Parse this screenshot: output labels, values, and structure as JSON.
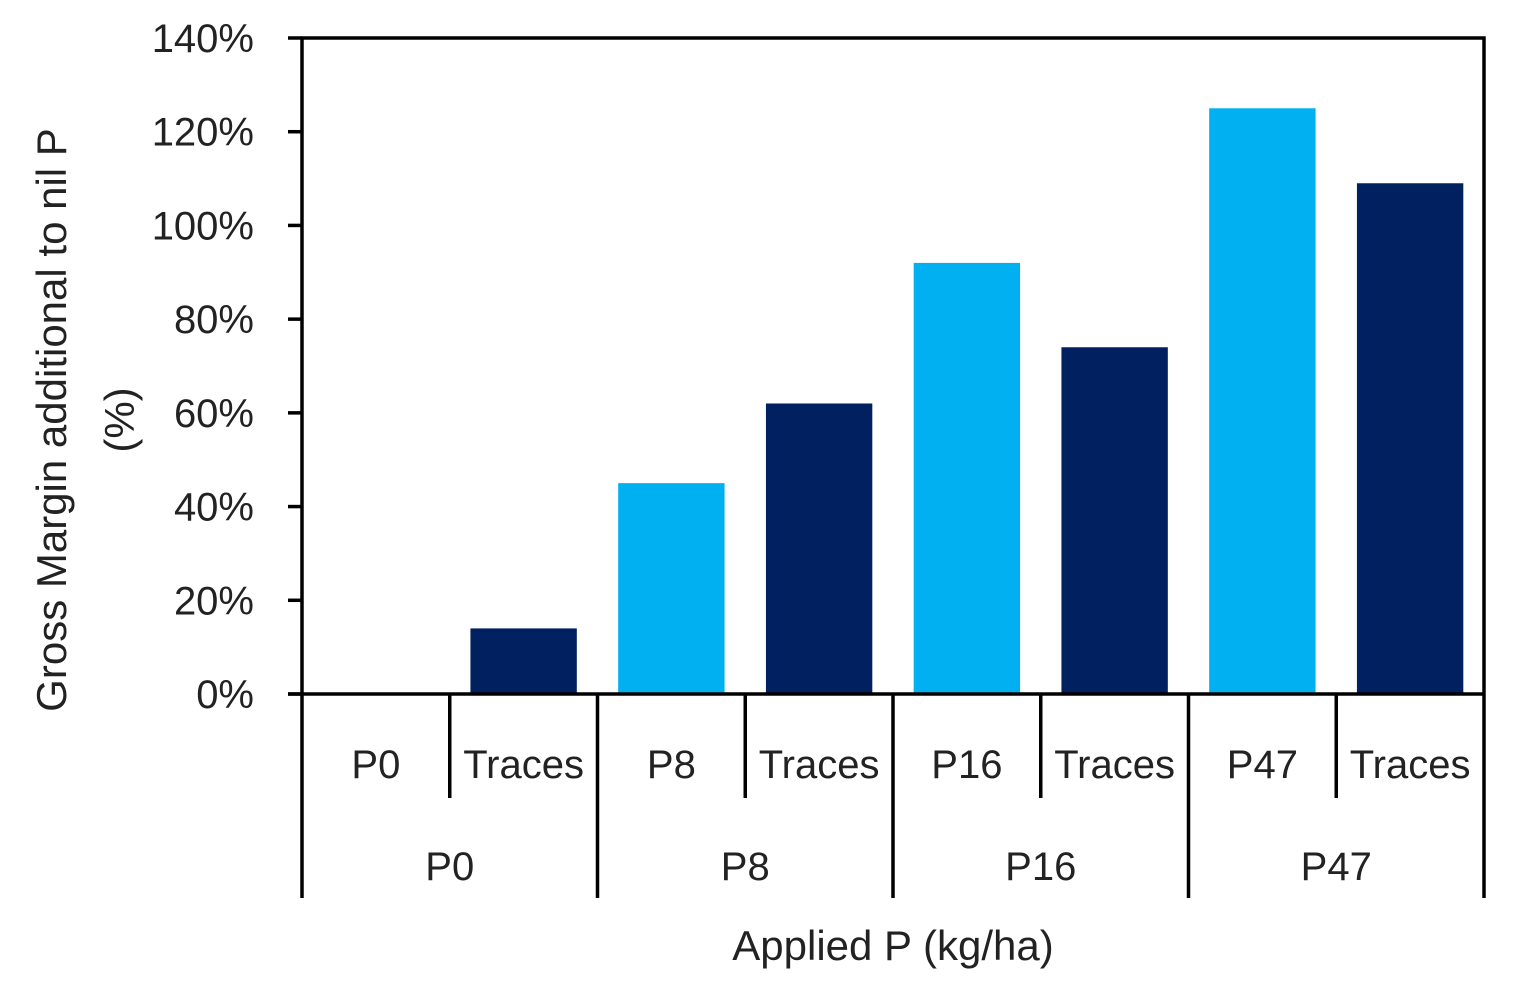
{
  "chart_data": {
    "type": "bar",
    "title": "",
    "xlabel": "Applied P (kg/ha)",
    "ylabel_line1": "Gross Margin additional to nil P",
    "ylabel_line2": "(%)",
    "ylim": [
      0,
      140
    ],
    "yticks": [
      0,
      20,
      40,
      60,
      80,
      100,
      120,
      140
    ],
    "ytick_labels": [
      "0%",
      "20%",
      "40%",
      "60%",
      "80%",
      "100%",
      "120%",
      "140%"
    ],
    "groups": [
      {
        "label": "P0",
        "bars": [
          {
            "label": "P0",
            "value": 0,
            "color": "#00b0f0"
          },
          {
            "label": "Traces",
            "value": 14,
            "color": "#002060"
          }
        ]
      },
      {
        "label": "P8",
        "bars": [
          {
            "label": "P8",
            "value": 45,
            "color": "#00b0f0"
          },
          {
            "label": "Traces",
            "value": 62,
            "color": "#002060"
          }
        ]
      },
      {
        "label": "P16",
        "bars": [
          {
            "label": "P16",
            "value": 92,
            "color": "#00b0f0"
          },
          {
            "label": "Traces",
            "value": 74,
            "color": "#002060"
          }
        ]
      },
      {
        "label": "P47",
        "bars": [
          {
            "label": "P47",
            "value": 125,
            "color": "#00b0f0"
          },
          {
            "label": "Traces",
            "value": 109,
            "color": "#002060"
          }
        ]
      }
    ],
    "grid": false,
    "legend": "none"
  }
}
